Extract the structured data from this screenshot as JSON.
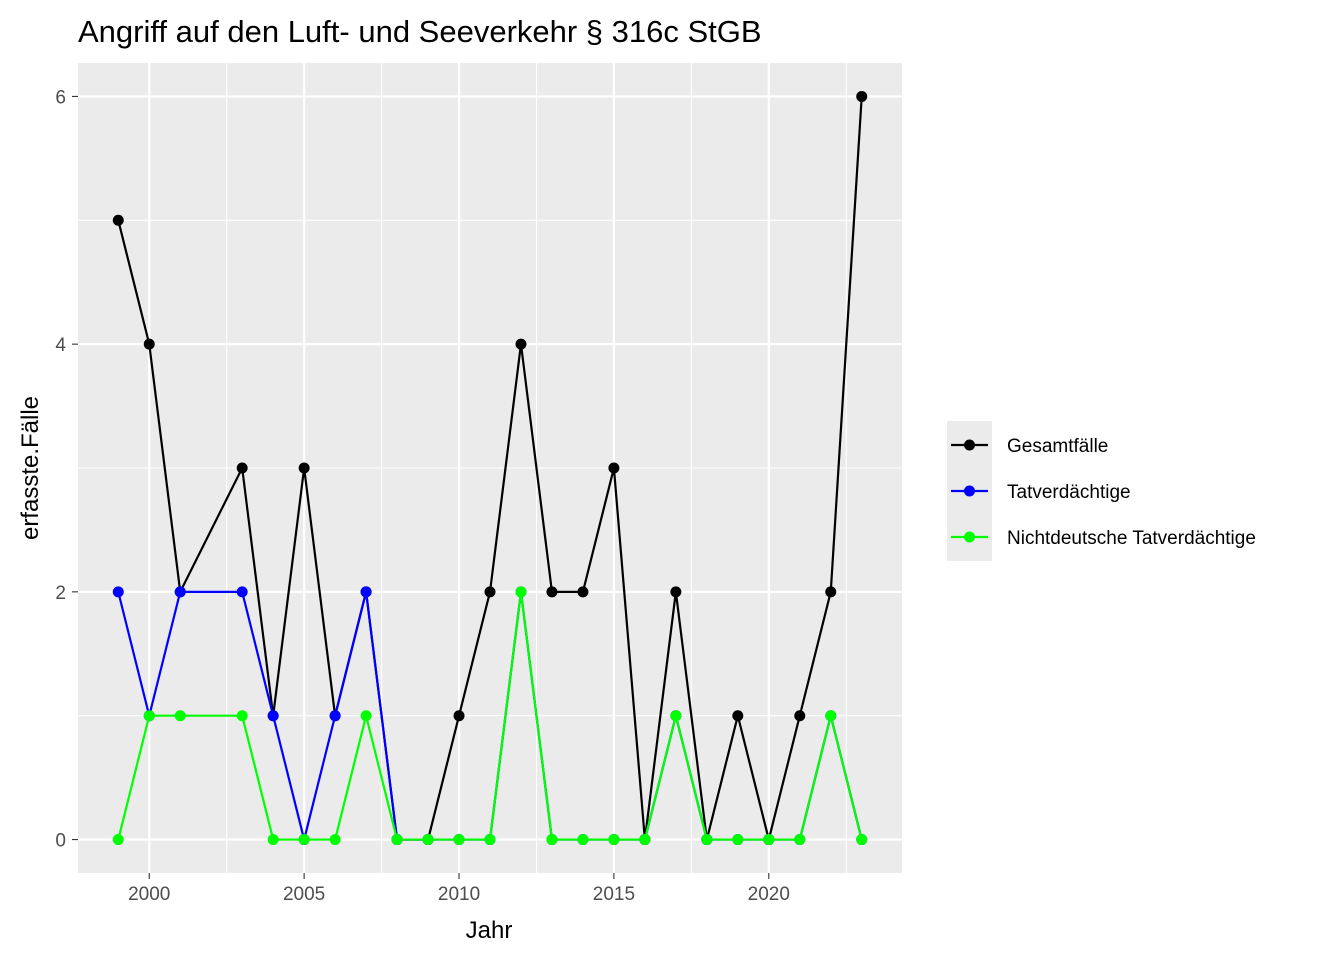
{
  "chart_data": {
    "type": "line",
    "title": "Angriff auf den Luft- und Seeverkehr § 316c StGB",
    "xlabel": "Jahr",
    "ylabel": "erfasste.Fälle",
    "x": [
      1999,
      2000,
      2001,
      2003,
      2004,
      2005,
      2006,
      2007,
      2008,
      2009,
      2010,
      2011,
      2012,
      2013,
      2014,
      2015,
      2016,
      2017,
      2018,
      2019,
      2020,
      2021,
      2022,
      2023
    ],
    "xlim": [
      1997.7,
      2024.3
    ],
    "ylim": [
      -0.27,
      6.27
    ],
    "x_ticks": [
      2000,
      2005,
      2010,
      2015,
      2020
    ],
    "y_ticks": [
      0,
      2,
      4,
      6
    ],
    "grid": true,
    "legend_position": "right",
    "series": [
      {
        "name": "Gesamtfälle",
        "color": "#000000",
        "values": [
          5,
          4,
          2,
          3,
          1,
          3,
          1,
          2,
          0,
          0,
          1,
          2,
          4,
          2,
          2,
          3,
          0,
          2,
          0,
          1,
          0,
          1,
          2,
          6
        ]
      },
      {
        "name": "Tatverdächtige",
        "color": "#0000ff",
        "values": [
          2,
          1,
          2,
          2,
          1,
          0,
          1,
          2,
          0,
          0,
          0,
          0,
          2,
          0,
          0,
          0,
          0,
          1,
          0,
          0,
          0,
          0,
          1,
          0
        ]
      },
      {
        "name": "Nichtdeutsche Tatverdächtige",
        "color": "#00ff00",
        "values": [
          0,
          1,
          1,
          1,
          0,
          0,
          0,
          1,
          0,
          0,
          0,
          0,
          2,
          0,
          0,
          0,
          0,
          1,
          0,
          0,
          0,
          0,
          1,
          0
        ]
      }
    ]
  }
}
